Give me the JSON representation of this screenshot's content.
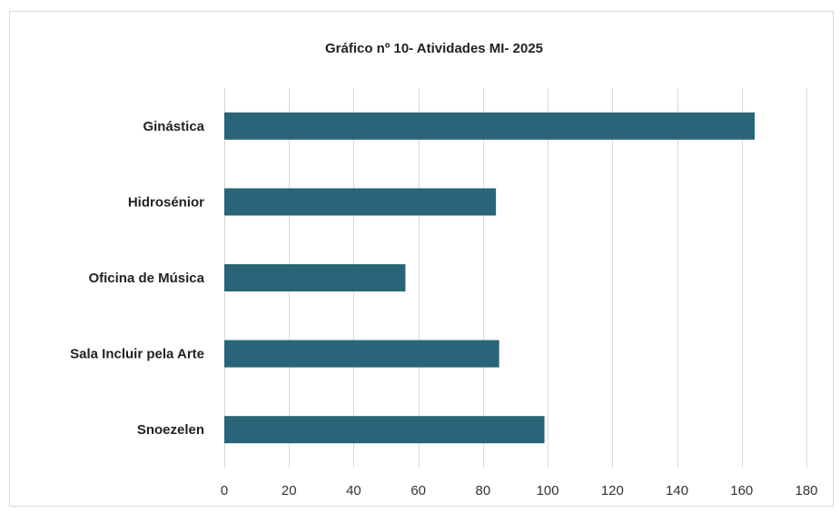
{
  "chart_data": {
    "type": "bar",
    "orientation": "horizontal",
    "title": "Gráfico nº 10- Atividades MI- 2025",
    "categories": [
      "Ginástica",
      "Hidrosénior",
      "Oficina de Música",
      "Sala Incluir pela Arte",
      "Snoezelen"
    ],
    "values": [
      164,
      84,
      56,
      85,
      99
    ],
    "xlim": [
      0,
      180
    ],
    "xticks": [
      0,
      20,
      40,
      60,
      80,
      100,
      120,
      140,
      160,
      180
    ],
    "xticklabels": [
      "0",
      "20",
      "40",
      "60",
      "80",
      "100",
      "120",
      "140",
      "160",
      "180"
    ],
    "xlabel": "",
    "ylabel": "",
    "grid": "vertical",
    "legend": "none",
    "bar_color": "#2a6478"
  }
}
